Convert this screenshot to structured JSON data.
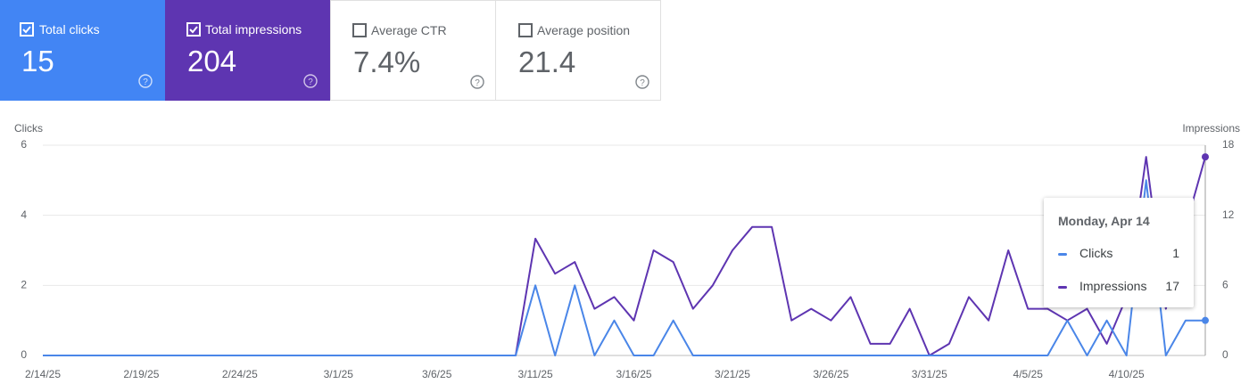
{
  "cards": [
    {
      "label": "Total clicks",
      "value": "15"
    },
    {
      "label": "Total impressions",
      "value": "204"
    },
    {
      "label": "Average CTR",
      "value": "7.4%"
    },
    {
      "label": "Average position",
      "value": "21.4"
    }
  ],
  "tooltip": {
    "date": "Monday, Apr 14",
    "rows": [
      {
        "label": "Clicks",
        "value": "1"
      },
      {
        "label": "Impressions",
        "value": "17"
      }
    ]
  },
  "chart_data": {
    "type": "line",
    "y_label": "Clicks",
    "y2_label": "Impressions",
    "categories": [
      "2/14/25",
      null,
      null,
      null,
      null,
      "2/19/25",
      null,
      null,
      null,
      null,
      "2/24/25",
      null,
      null,
      null,
      null,
      "3/1/25",
      null,
      null,
      null,
      null,
      "3/6/25",
      null,
      null,
      null,
      null,
      "3/11/25",
      null,
      null,
      null,
      null,
      "3/16/25",
      null,
      null,
      null,
      null,
      "3/21/25",
      null,
      null,
      null,
      null,
      "3/26/25",
      null,
      null,
      null,
      null,
      "3/31/25",
      null,
      null,
      null,
      null,
      "4/5/25",
      null,
      null,
      null,
      null,
      "4/10/25",
      null,
      null,
      null,
      null
    ],
    "series": [
      {
        "name": "Clicks",
        "color": "#4a86e8",
        "values": [
          0,
          0,
          0,
          0,
          0,
          0,
          0,
          0,
          0,
          0,
          0,
          0,
          0,
          0,
          0,
          0,
          0,
          0,
          0,
          0,
          0,
          0,
          0,
          0,
          0,
          2,
          0,
          2,
          0,
          1,
          0,
          0,
          1,
          0,
          0,
          0,
          0,
          0,
          0,
          0,
          0,
          0,
          0,
          0,
          0,
          0,
          0,
          0,
          0,
          0,
          0,
          0,
          1,
          0,
          1,
          0,
          5,
          0,
          1,
          1
        ]
      },
      {
        "name": "Impressions",
        "color": "#5e35b1",
        "axis": "y2",
        "values": [
          0,
          0,
          0,
          0,
          0,
          0,
          0,
          0,
          0,
          0,
          0,
          0,
          0,
          0,
          0,
          0,
          0,
          0,
          0,
          0,
          0,
          0,
          0,
          0,
          0,
          10,
          7,
          8,
          4,
          5,
          3,
          9,
          8,
          4,
          6,
          9,
          11,
          11,
          3,
          4,
          3,
          5,
          1,
          1,
          4,
          0,
          1,
          5,
          3,
          9,
          4,
          4,
          3,
          4,
          1,
          5,
          17,
          4,
          11,
          17
        ]
      }
    ],
    "ylim": [
      0,
      6
    ],
    "yticks": [
      0,
      2,
      4,
      6
    ],
    "y2lim": [
      0,
      18
    ],
    "y2ticks": [
      0,
      6,
      12,
      18
    ],
    "grid": true
  }
}
